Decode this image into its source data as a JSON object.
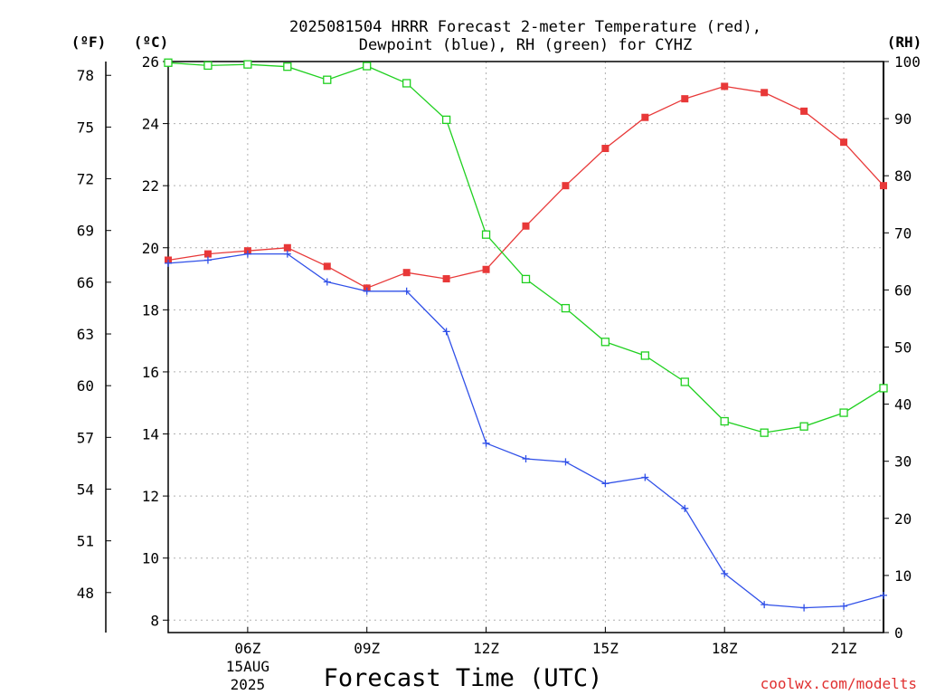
{
  "chart_data": {
    "type": "line",
    "title_lines": [
      "2025081504 HRRR Forecast 2-meter Temperature (red),",
      "Dewpoint (blue), RH (green) for CYHZ"
    ],
    "units": {
      "fahrenheit": "(ºF)",
      "celsius": "(ºC)",
      "rh": "(RH)"
    },
    "xlabel": "Forecast Time (UTC)",
    "credit": "coolwx.com/modelts",
    "x_ticks": [
      {
        "hour": 6,
        "label": "06Z",
        "sub1": "15AUG",
        "sub2": "2025"
      },
      {
        "hour": 9,
        "label": "09Z"
      },
      {
        "hour": 12,
        "label": "12Z"
      },
      {
        "hour": 15,
        "label": "15Z"
      },
      {
        "hour": 18,
        "label": "18Z"
      },
      {
        "hour": 21,
        "label": "21Z"
      }
    ],
    "xlim": [
      4,
      22
    ],
    "celsius_axis": {
      "ylim": [
        7.6,
        26
      ],
      "ticks": [
        8,
        10,
        12,
        14,
        16,
        18,
        20,
        22,
        24,
        26
      ]
    },
    "fahrenheit_axis": {
      "ticks": [
        48,
        51,
        54,
        57,
        60,
        63,
        66,
        69,
        72,
        75,
        78
      ]
    },
    "rh_axis": {
      "ylim": [
        0,
        100
      ],
      "ticks": [
        0,
        10,
        20,
        30,
        40,
        50,
        60,
        70,
        80,
        90,
        100
      ]
    },
    "series": [
      {
        "key": "temperature",
        "color": "#e83838",
        "marker": "filled-square",
        "axis": "celsius",
        "x": [
          4,
          5,
          6,
          7,
          8,
          9,
          10,
          11,
          12,
          13,
          14,
          15,
          16,
          17,
          18,
          19,
          20,
          21,
          22
        ],
        "values": [
          19.6,
          19.8,
          19.9,
          20.0,
          19.4,
          18.7,
          19.2,
          19.0,
          19.3,
          20.7,
          22.0,
          23.2,
          24.2,
          24.8,
          25.2,
          25.0,
          24.4,
          23.4,
          22.0
        ]
      },
      {
        "key": "dewpoint",
        "color": "#3050e8",
        "marker": "plus",
        "axis": "celsius",
        "x": [
          4,
          5,
          6,
          7,
          8,
          9,
          10,
          11,
          12,
          13,
          14,
          15,
          16,
          17,
          18,
          19,
          20,
          21,
          22
        ],
        "values": [
          19.5,
          19.6,
          19.8,
          19.8,
          18.9,
          18.6,
          18.6,
          17.3,
          13.7,
          13.2,
          13.1,
          12.4,
          12.6,
          11.6,
          9.5,
          8.5,
          8.4,
          8.45,
          8.8
        ]
      },
      {
        "key": "rh",
        "color": "#20d020",
        "marker": "open-square",
        "axis": "rh",
        "x": [
          4,
          5,
          6,
          7,
          8,
          9,
          10,
          11,
          12,
          13,
          14,
          15,
          16,
          17,
          18,
          19,
          20,
          21,
          22
        ],
        "values": [
          99.8,
          99.3,
          99.5,
          99.1,
          96.8,
          99.2,
          96.2,
          89.8,
          69.7,
          61.9,
          56.8,
          50.9,
          48.5,
          43.9,
          37.0,
          35.0,
          36.1,
          38.5,
          42.8
        ]
      }
    ],
    "grid": true
  }
}
